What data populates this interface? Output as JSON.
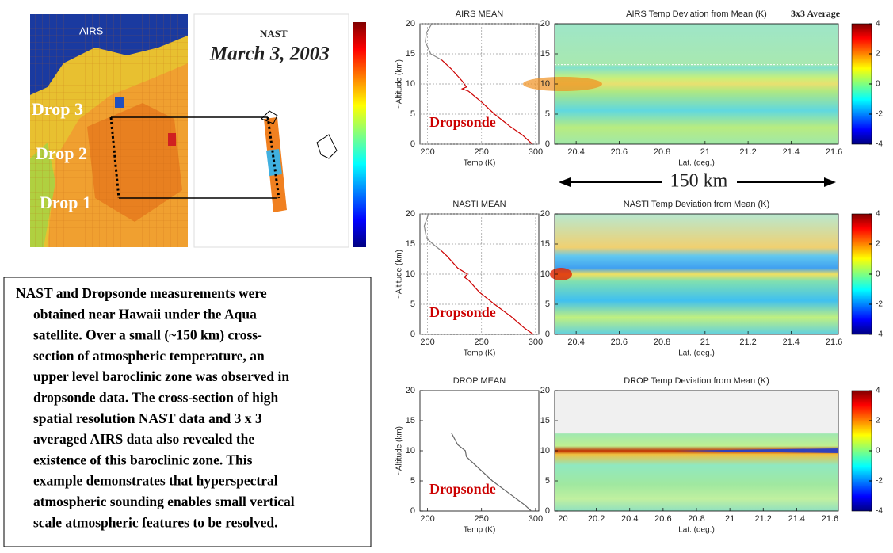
{
  "map": {
    "airs_label": "AIRS",
    "nast_label": "NAST",
    "date": "March 3, 2003",
    "drops": [
      "Drop 3",
      "Drop 2",
      "Drop 1"
    ]
  },
  "distance_label": "150 km",
  "text_box": {
    "lines": [
      "NAST and Dropsonde measurements were",
      "obtained near Hawaii under the Aqua",
      "satellite.  Over a small (~150 km) cross-",
      "section of atmospheric temperature, an",
      "upper level baroclinic zone was observed in",
      "dropsonde data.  The cross-section of high",
      "spatial resolution NAST data and 3 x 3",
      "averaged AIRS data also revealed the",
      "existence of this baroclinic zone.  This",
      "example demonstrates that hyperspectral",
      "atmospheric sounding enables small vertical",
      "scale atmospheric features to be resolved."
    ]
  },
  "chart_data": [
    {
      "type": "line",
      "title": "AIRS MEAN",
      "xlabel": "Temp (K)",
      "ylabel": "~Altitude (km)",
      "annotation": "Dropsonde",
      "annotation_color": "#cc0000",
      "xlim": [
        193,
        303
      ],
      "ylim": [
        0,
        20
      ],
      "xticks": [
        200,
        250,
        300
      ],
      "yticks": [
        0,
        5,
        10,
        15,
        20
      ],
      "grid": true,
      "series": [
        {
          "color": "#888888",
          "x": [
            204,
            199,
            198,
            203,
            213
          ],
          "y": [
            20,
            18.5,
            17,
            15,
            14
          ]
        },
        {
          "color": "#cc0000",
          "x": [
            213,
            222,
            232,
            236,
            232,
            238,
            250,
            262,
            276,
            288,
            297
          ],
          "y": [
            14,
            12.5,
            10.5,
            9.5,
            9.2,
            8.8,
            7,
            5,
            3,
            1.5,
            0
          ]
        }
      ]
    },
    {
      "type": "heatmap",
      "title": "AIRS Temp Deviation from Mean (K)",
      "subtitle": "3x3 Average",
      "xlabel": "Lat. (deg.)",
      "xlim": [
        20.3,
        21.62
      ],
      "xticks": [
        20.4,
        20.6,
        20.8,
        21,
        21.2,
        21.4,
        21.6
      ],
      "ylim": [
        0,
        20
      ],
      "yticks": [
        0,
        5,
        10,
        15,
        20
      ],
      "clim": [
        -4,
        4
      ],
      "cticks": [
        -4,
        -2,
        0,
        2,
        4
      ]
    },
    {
      "type": "line",
      "title": "NASTI MEAN",
      "xlabel": "Temp (K)",
      "ylabel": "~Altitude (km)",
      "annotation": "Dropsonde",
      "annotation_color": "#cc0000",
      "xlim": [
        193,
        303
      ],
      "ylim": [
        0,
        20
      ],
      "xticks": [
        200,
        250,
        300
      ],
      "yticks": [
        0,
        5,
        10,
        15,
        20
      ],
      "grid": true,
      "series": [
        {
          "color": "#888888",
          "x": [
            201,
            197,
            199,
            205,
            212
          ],
          "y": [
            20,
            18,
            16,
            15,
            14
          ]
        },
        {
          "color": "#cc0000",
          "x": [
            212,
            218,
            228,
            237,
            234,
            238,
            248,
            262,
            277,
            290,
            298
          ],
          "y": [
            14,
            13,
            11,
            10,
            9.5,
            9,
            7,
            5,
            3,
            1,
            0
          ]
        }
      ]
    },
    {
      "type": "heatmap",
      "title": "NASTI Temp Deviation from Mean (K)",
      "xlabel": "Lat. (deg.)",
      "xlim": [
        20.3,
        21.62
      ],
      "xticks": [
        20.4,
        20.6,
        20.8,
        21,
        21.2,
        21.4,
        21.6
      ],
      "ylim": [
        0,
        20
      ],
      "yticks": [
        0,
        5,
        10,
        15,
        20
      ],
      "clim": [
        -4,
        4
      ],
      "cticks": [
        -4,
        -2,
        0,
        2,
        4
      ]
    },
    {
      "type": "line",
      "title": "DROP MEAN",
      "xlabel": "Temp (K)",
      "ylabel": "~Altitude (km)",
      "annotation": "Dropsonde",
      "annotation_color": "#cc0000",
      "xlim": [
        193,
        303
      ],
      "ylim": [
        0,
        20
      ],
      "xticks": [
        200,
        250,
        300
      ],
      "yticks": [
        0,
        5,
        10,
        15,
        20
      ],
      "grid": false,
      "series": [
        {
          "color": "#666666",
          "x": [
            222,
            228,
            235,
            236,
            245,
            260,
            275,
            290,
            296
          ],
          "y": [
            13,
            11,
            10,
            9,
            7.5,
            5,
            3,
            1,
            0
          ]
        }
      ]
    },
    {
      "type": "heatmap",
      "title": "DROP Temp Deviation from Mean (K)",
      "xlabel": "Lat. (deg.)",
      "xlim": [
        19.95,
        21.65
      ],
      "xticks": [
        20,
        20.2,
        20.4,
        20.6,
        20.8,
        21,
        21.2,
        21.4,
        21.6
      ],
      "ylim": [
        0,
        20
      ],
      "yticks": [
        0,
        5,
        10,
        15,
        20
      ],
      "clim": [
        -4,
        4
      ],
      "cticks": [
        -4,
        -2,
        0,
        2,
        4
      ]
    }
  ]
}
